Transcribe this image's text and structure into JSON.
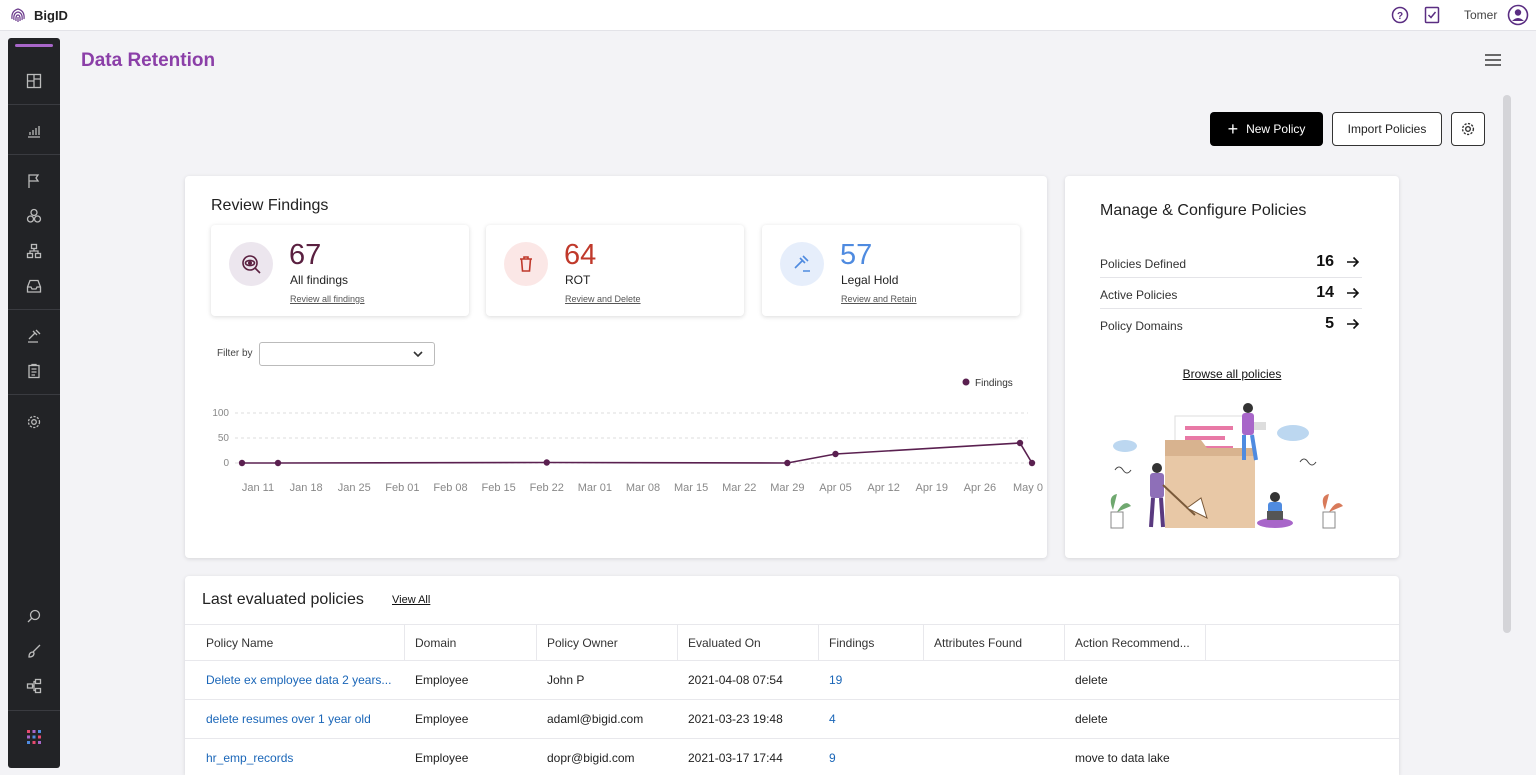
{
  "app": {
    "logo_text": "BigID",
    "user_name": "Tomer"
  },
  "sidebar": {
    "items": [
      "dashboard-icon",
      "reports-icon",
      "flag-icon",
      "catalog-icon",
      "hierarchy-icon",
      "inbox-icon",
      "retention-icon",
      "clipboard-icon",
      "settings-icon",
      "search-data-icon",
      "brush-icon",
      "sitemap-icon",
      "apps-grid-icon"
    ]
  },
  "page": {
    "title": "Data Retention"
  },
  "toolbar": {
    "new_policy": "New Policy",
    "import_policies": "Import Policies"
  },
  "review": {
    "title": "Review Findings",
    "stats": [
      {
        "value": "67",
        "label": "All findings",
        "link": "Review all findings",
        "color": "#5a2040",
        "icon": "eye-search-icon"
      },
      {
        "value": "64",
        "label": "ROT",
        "link": "Review and Delete",
        "color": "#c0392b",
        "icon": "trash-icon"
      },
      {
        "value": "57",
        "label": "Legal Hold",
        "link": "Review and Retain",
        "color": "#4f8be0",
        "icon": "gavel-icon"
      }
    ],
    "filter_label": "Filter by",
    "filter_value": ""
  },
  "chart_data": {
    "type": "line",
    "legend": "Findings",
    "legend_position": "top-right",
    "ylim": [
      0,
      100
    ],
    "yticks": [
      "0",
      "50",
      "100"
    ],
    "xticks": [
      "Jan 11",
      "Jan 18",
      "Jan 25",
      "Feb 01",
      "Feb 08",
      "Feb 15",
      "Feb 22",
      "Mar 01",
      "Mar 08",
      "Mar 15",
      "Mar 22",
      "Mar 29",
      "Apr 05",
      "Apr 12",
      "Apr 19",
      "Apr 26",
      "May 0"
    ],
    "series": [
      {
        "name": "Findings",
        "points": [
          {
            "x": "Jan 11",
            "y": 0
          },
          {
            "x": "Jan 11",
            "y": 0
          },
          {
            "x": "Feb 22",
            "y": 1
          },
          {
            "x": "Mar 29",
            "y": 0
          },
          {
            "x": "Apr 05",
            "y": 18
          },
          {
            "x": "May 0",
            "y": 40
          },
          {
            "x": "May 0",
            "y": 0
          }
        ]
      }
    ],
    "grid": true,
    "color": "#5a2050"
  },
  "manage": {
    "title": "Manage & Configure Policies",
    "rows": [
      {
        "label": "Policies Defined",
        "value": "16"
      },
      {
        "label": "Active Policies",
        "value": "14"
      },
      {
        "label": "Policy Domains",
        "value": "5"
      }
    ],
    "browse_link": "Browse all policies"
  },
  "policies": {
    "title": "Last evaluated policies",
    "view_all": "View All",
    "columns": [
      "Policy Name",
      "Domain",
      "Policy Owner",
      "Evaluated On",
      "Findings",
      "Attributes Found",
      "Action Recommend..."
    ],
    "rows": [
      [
        "Delete ex employee data 2 years...",
        "Employee",
        "John P",
        "2021-04-08 07:54",
        "19",
        "",
        "delete"
      ],
      [
        "delete resumes over 1 year old",
        "Employee",
        "adaml@bigid.com",
        "2021-03-23 19:48",
        "4",
        "",
        "delete"
      ],
      [
        "hr_emp_records",
        "Employee",
        "dopr@bigid.com",
        "2021-03-17 17:44",
        "9",
        "",
        "move to data lake"
      ]
    ]
  }
}
